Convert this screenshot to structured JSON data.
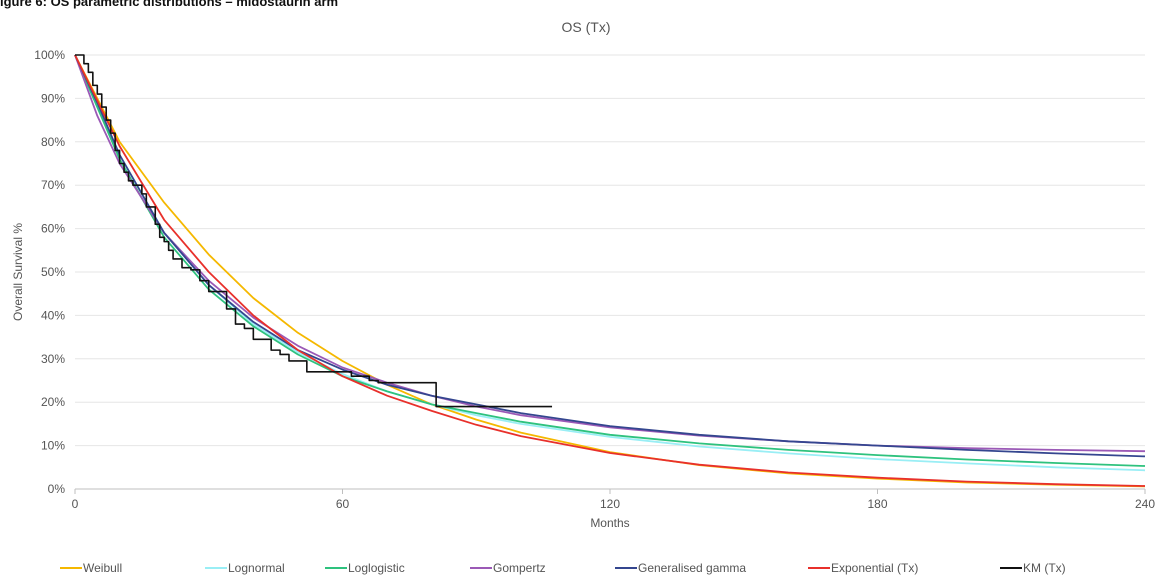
{
  "figure_caption": "igure 6: OS parametric distributions – midostaurin arm",
  "chart_data": {
    "type": "line",
    "title": "OS (Tx)",
    "xlabel": "Months",
    "ylabel": "Overall Survival %",
    "xlim": [
      0,
      240
    ],
    "ylim": [
      0,
      100
    ],
    "x_ticks": [
      "0",
      "60",
      "120",
      "180",
      "240"
    ],
    "y_ticks": [
      "0%",
      "10%",
      "20%",
      "30%",
      "40%",
      "50%",
      "60%",
      "70%",
      "80%",
      "90%",
      "100%"
    ],
    "grid": "horizontal",
    "legend_position": "bottom",
    "series": [
      {
        "name": "Weibull",
        "color": "#f5b800",
        "x": [
          0,
          10,
          20,
          30,
          40,
          50,
          60,
          70,
          80,
          90,
          100,
          120,
          140,
          160,
          180,
          200,
          220,
          240
        ],
        "y": [
          100,
          80,
          66,
          54,
          44,
          36,
          29.5,
          24,
          19.5,
          16,
          13,
          8.5,
          5.5,
          3.6,
          2.4,
          1.5,
          1.0,
          0.6
        ]
      },
      {
        "name": "Lognormal",
        "color": "#99eef5",
        "x": [
          0,
          5,
          10,
          20,
          30,
          40,
          50,
          60,
          70,
          80,
          90,
          100,
          120,
          140,
          160,
          180,
          200,
          220,
          240
        ],
        "y": [
          100,
          88,
          77,
          59,
          47,
          38,
          31.5,
          26.5,
          22.5,
          19.5,
          17,
          15,
          12,
          9.8,
          8.2,
          6.9,
          5.9,
          5.0,
          4.3
        ]
      },
      {
        "name": "Loglogistic",
        "color": "#2ec27e",
        "x": [
          0,
          5,
          10,
          20,
          30,
          40,
          50,
          60,
          70,
          80,
          90,
          100,
          120,
          140,
          160,
          180,
          200,
          220,
          240
        ],
        "y": [
          100,
          88,
          76,
          58,
          46,
          37.5,
          31,
          26,
          22.5,
          19.5,
          17.5,
          15.5,
          12.5,
          10.5,
          9,
          7.8,
          6.8,
          6,
          5.3
        ]
      },
      {
        "name": "Gompertz",
        "color": "#9b59b6",
        "x": [
          0,
          5,
          10,
          20,
          30,
          40,
          50,
          60,
          70,
          80,
          90,
          100,
          120,
          140,
          160,
          180,
          200,
          220,
          240
        ],
        "y": [
          100,
          86,
          75,
          59,
          48,
          39.5,
          33,
          28,
          24.5,
          21.5,
          19,
          17,
          14.2,
          12.3,
          11,
          10,
          9.4,
          9,
          8.7
        ]
      },
      {
        "name": "Generalised gamma",
        "color": "#34468f",
        "x": [
          0,
          5,
          10,
          20,
          30,
          40,
          50,
          60,
          70,
          80,
          90,
          100,
          120,
          140,
          160,
          180,
          200,
          220,
          240
        ],
        "y": [
          100,
          89,
          77,
          59,
          47,
          38.5,
          32,
          27.5,
          24,
          21.5,
          19.5,
          17.5,
          14.5,
          12.5,
          11,
          10,
          9,
          8.2,
          7.5
        ]
      },
      {
        "name": "Exponential (Tx)",
        "color": "#e8302b",
        "x": [
          0,
          10,
          20,
          30,
          40,
          50,
          60,
          70,
          80,
          90,
          100,
          120,
          140,
          160,
          180,
          200,
          220,
          240
        ],
        "y": [
          100,
          79,
          62,
          50,
          40,
          32,
          26,
          21.5,
          18,
          14.8,
          12.2,
          8.3,
          5.6,
          3.8,
          2.6,
          1.7,
          1.1,
          0.7
        ]
      },
      {
        "name": "KM (Tx)",
        "color": "#111111",
        "step": true,
        "x": [
          0,
          2,
          3,
          4,
          5,
          6,
          7,
          8,
          9,
          10,
          11,
          12,
          13,
          14,
          15,
          16,
          18,
          19,
          20,
          21,
          22,
          24,
          26,
          27,
          28,
          30,
          32,
          34,
          36,
          37,
          38,
          40,
          42,
          44,
          46,
          48,
          50,
          52,
          56,
          62,
          66,
          68,
          72,
          80,
          81,
          90,
          107
        ],
        "y": [
          100,
          98,
          96,
          93,
          91,
          88,
          85,
          82,
          78,
          75,
          73,
          71,
          70,
          70,
          68,
          65,
          61,
          58,
          57,
          55,
          53,
          51,
          50.5,
          50.5,
          48,
          45.5,
          45.5,
          41.5,
          38,
          38,
          37,
          34.5,
          34.5,
          32,
          31,
          29.5,
          29.5,
          27,
          27,
          26,
          25,
          24.5,
          24.5,
          24.5,
          19,
          19,
          19
        ]
      }
    ]
  }
}
